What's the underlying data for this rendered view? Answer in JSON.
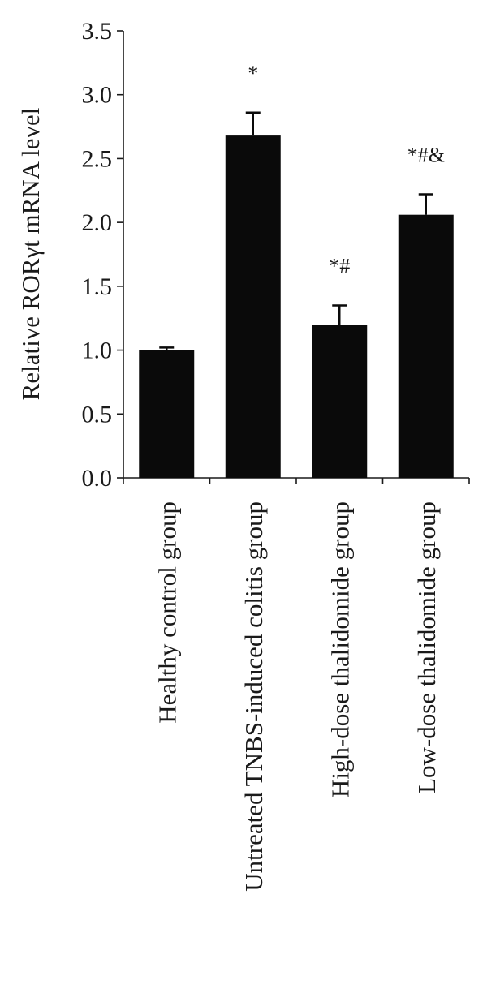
{
  "chart_data": {
    "type": "bar",
    "ylabel": "Relative RORγt mRNA level",
    "xlabel": "",
    "ylim": [
      0,
      3.5
    ],
    "yticks": [
      "0.0",
      "0.5",
      "1.0",
      "1.5",
      "2.0",
      "2.5",
      "3.0",
      "3.5"
    ],
    "categories": [
      "Healthy control group",
      "Untreated TNBS-induced colitis group",
      "High-dose thalidomide group",
      "Low-dose thalidomide group"
    ],
    "values": [
      1.0,
      2.68,
      1.2,
      2.06
    ],
    "errors": [
      0.02,
      0.18,
      0.15,
      0.16
    ],
    "annotations": [
      "",
      "*",
      "*#",
      "*#&"
    ],
    "bar_color": "#0a0a0a",
    "grid": false,
    "legend": "none"
  }
}
